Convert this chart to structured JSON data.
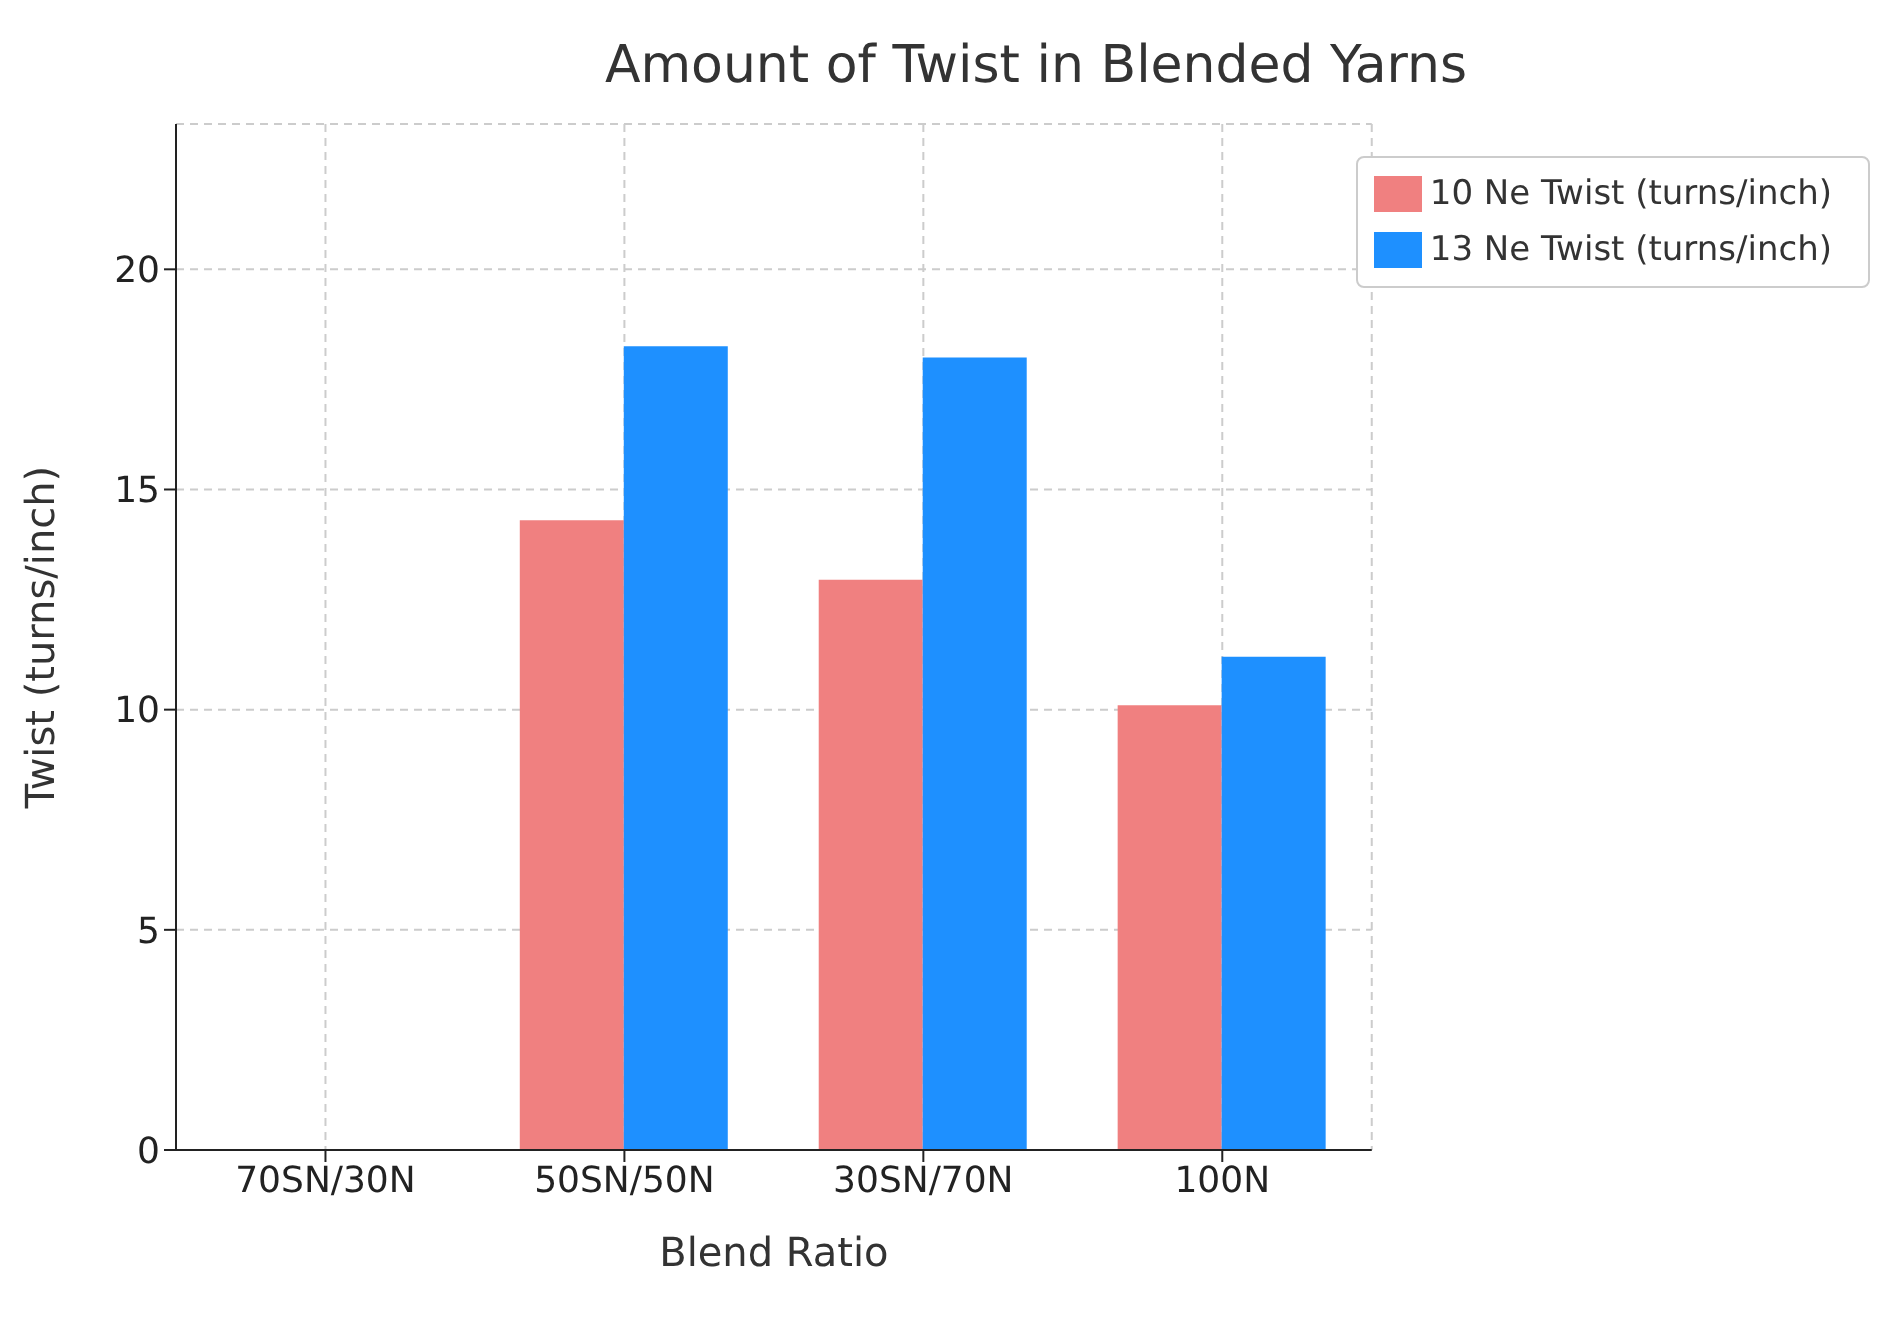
{
  "chart_data": {
    "type": "bar",
    "title": "Amount of Twist in Blended Yarns",
    "xlabel": "Blend Ratio",
    "ylabel": "Twist (turns/inch)",
    "categories": [
      "70SN/30N",
      "50SN/50N",
      "30SN/70N",
      "100N"
    ],
    "series": [
      {
        "name": "10 Ne Twist (turns/inch)",
        "color": "#f08080",
        "values": [
          null,
          14.3,
          12.95,
          10.1
        ]
      },
      {
        "name": "13 Ne Twist (turns/inch)",
        "color": "#1e90ff",
        "values": [
          null,
          18.25,
          18.0,
          11.2
        ]
      }
    ],
    "ylim": [
      0,
      23.3
    ],
    "yticks": [
      0,
      5,
      10,
      15,
      20
    ],
    "grid": true,
    "legend": "top right"
  }
}
